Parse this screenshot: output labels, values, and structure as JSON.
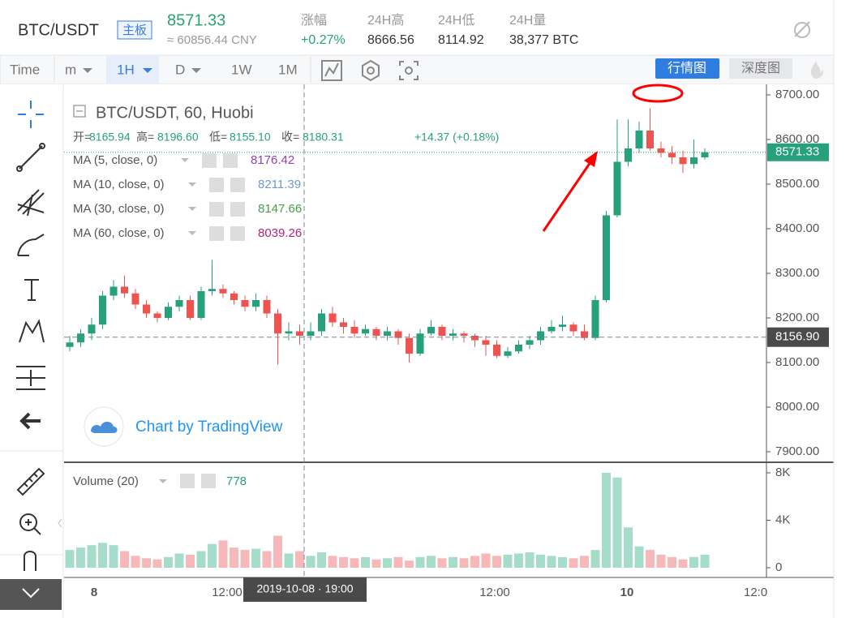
{
  "header": {
    "symbol": "BTC/USDT",
    "board": "主板",
    "price": "8571.33",
    "cny": "≈ 60856.44 CNY",
    "stats": [
      {
        "label": "涨幅",
        "value": "+0.27%"
      },
      {
        "label": "24H高",
        "value": "8666.56"
      },
      {
        "label": "24H低",
        "value": "8114.92"
      },
      {
        "label": "24H量",
        "value": "38,377 BTC"
      }
    ]
  },
  "toolbar": {
    "intervals": [
      "Time",
      "m",
      "1H",
      "D",
      "1W",
      "1M"
    ],
    "views": [
      "行情图",
      "深度图"
    ]
  },
  "legend": {
    "title": "BTC/USDT, 60, Huobi",
    "ohlc": [
      {
        "label": "开=",
        "value": "8165.94"
      },
      {
        "label": "高=",
        "value": "8196.60"
      },
      {
        "label": "低=",
        "value": "8155.10"
      },
      {
        "label": "收=",
        "value": "8180.31"
      }
    ],
    "change": "+14.37 (+0.18%)",
    "ma": [
      {
        "label": "MA (5, close, 0)",
        "value": "8176.42"
      },
      {
        "label": "MA (10, close, 0)",
        "value": "8211.39"
      },
      {
        "label": "MA (30, close, 0)",
        "value": "8147.66"
      },
      {
        "label": "MA (60, close, 0)",
        "value": "8039.26"
      }
    ],
    "watermark": "Chart by TradingView",
    "volume_label": "Volume (20)",
    "volume_value": "778"
  },
  "crosshair": {
    "price": "8156.90",
    "time": "2019-10-08 · 19:00"
  },
  "time_labels": [
    "8",
    "12:00",
    "12:00",
    "10",
    "12:0"
  ],
  "chart_data": {
    "type": "candlestick",
    "candles": [
      [
        8135,
        8160,
        8125,
        8145
      ],
      [
        8145,
        8175,
        8135,
        8165
      ],
      [
        8165,
        8200,
        8150,
        8185
      ],
      [
        8185,
        8260,
        8175,
        8250
      ],
      [
        8250,
        8285,
        8240,
        8270
      ],
      [
        8270,
        8295,
        8245,
        8255
      ],
      [
        8255,
        8265,
        8220,
        8230
      ],
      [
        8230,
        8240,
        8200,
        8210
      ],
      [
        8210,
        8215,
        8190,
        8200
      ],
      [
        8200,
        8235,
        8195,
        8225
      ],
      [
        8225,
        8250,
        8215,
        8240
      ],
      [
        8240,
        8250,
        8195,
        8200
      ],
      [
        8200,
        8270,
        8195,
        8260
      ],
      [
        8260,
        8330,
        8250,
        8265
      ],
      [
        8265,
        8275,
        8245,
        8255
      ],
      [
        8255,
        8260,
        8230,
        8240
      ],
      [
        8240,
        8250,
        8215,
        8225
      ],
      [
        8225,
        8255,
        8215,
        8240
      ],
      [
        8240,
        8250,
        8200,
        8210
      ],
      [
        8210,
        8220,
        8095,
        8165
      ],
      [
        8165,
        8190,
        8150,
        8170
      ],
      [
        8170,
        8185,
        8140,
        8160
      ],
      [
        8160,
        8190,
        8150,
        8170
      ],
      [
        8170,
        8220,
        8160,
        8210
      ],
      [
        8210,
        8225,
        8180,
        8190
      ],
      [
        8190,
        8200,
        8165,
        8180
      ],
      [
        8180,
        8195,
        8155,
        8165
      ],
      [
        8165,
        8185,
        8160,
        8175
      ],
      [
        8175,
        8180,
        8150,
        8160
      ],
      [
        8160,
        8180,
        8150,
        8170
      ],
      [
        8170,
        8175,
        8140,
        8155
      ],
      [
        8155,
        8165,
        8100,
        8120
      ],
      [
        8120,
        8175,
        8115,
        8165
      ],
      [
        8165,
        8195,
        8160,
        8180
      ],
      [
        8180,
        8185,
        8150,
        8160
      ],
      [
        8160,
        8175,
        8150,
        8165
      ],
      [
        8165,
        8170,
        8145,
        8160
      ],
      [
        8160,
        8165,
        8135,
        8150
      ],
      [
        8150,
        8160,
        8115,
        8140
      ],
      [
        8140,
        8150,
        8110,
        8115
      ],
      [
        8115,
        8135,
        8110,
        8125
      ],
      [
        8125,
        8150,
        8120,
        8140
      ],
      [
        8140,
        8160,
        8130,
        8150
      ],
      [
        8150,
        8180,
        8140,
        8170
      ],
      [
        8170,
        8195,
        8165,
        8180
      ],
      [
        8180,
        8205,
        8170,
        8185
      ],
      [
        8185,
        8190,
        8160,
        8170
      ],
      [
        8170,
        8185,
        8150,
        8155
      ],
      [
        8155,
        8250,
        8150,
        8240
      ],
      [
        8240,
        8440,
        8235,
        8430
      ],
      [
        8430,
        8645,
        8425,
        8550
      ],
      [
        8550,
        8645,
        8540,
        8580
      ],
      [
        8580,
        8640,
        8570,
        8620
      ],
      [
        8620,
        8670,
        8575,
        8580
      ],
      [
        8580,
        8595,
        8560,
        8570
      ],
      [
        8570,
        8585,
        8545,
        8560
      ],
      [
        8560,
        8575,
        8525,
        8545
      ],
      [
        8545,
        8600,
        8535,
        8560
      ],
      [
        8560,
        8580,
        8555,
        8571.33
      ]
    ],
    "volume": [
      1500,
      1700,
      1900,
      2100,
      1900,
      1400,
      1000,
      800,
      700,
      900,
      1200,
      1100,
      1400,
      2000,
      2300,
      1700,
      1500,
      1600,
      1400,
      2700,
      1200,
      1400,
      1000,
      1300,
      1000,
      900,
      800,
      900,
      700,
      800,
      900,
      600,
      900,
      1000,
      800,
      900,
      800,
      1000,
      1200,
      1000,
      1100,
      1200,
      1300,
      1100,
      1000,
      900,
      800,
      1000,
      1500,
      8000,
      7600,
      3400,
      1800,
      1500,
      1100,
      900,
      700,
      900,
      1100
    ],
    "up_color": "#26a17b",
    "down_color": "#ef5350",
    "up_volume_color": "#a6ddc8",
    "down_volume_color": "#f6b8b8",
    "ylim": [
      7900,
      8700
    ],
    "yticks": [
      {
        "value": 8700,
        "label": "8700.00"
      },
      {
        "value": 8600,
        "label": "8600.00"
      },
      {
        "value": 8500,
        "label": "8500.00"
      },
      {
        "value": 8400,
        "label": "8400.00"
      },
      {
        "value": 8300,
        "label": "8300.00"
      },
      {
        "value": 8200,
        "label": "8200.00"
      },
      {
        "value": 8100,
        "label": "8100.00"
      },
      {
        "value": 8000,
        "label": "8000.00"
      },
      {
        "value": 7900,
        "label": "7900.00"
      }
    ],
    "y2lim": [
      0,
      8000
    ],
    "y2ticks": [
      {
        "value": 8000,
        "label": "8K"
      },
      {
        "value": 4000,
        "label": "4K"
      },
      0
    ],
    "last_price": 8571.33,
    "crosshair_price": 8156.9
  }
}
